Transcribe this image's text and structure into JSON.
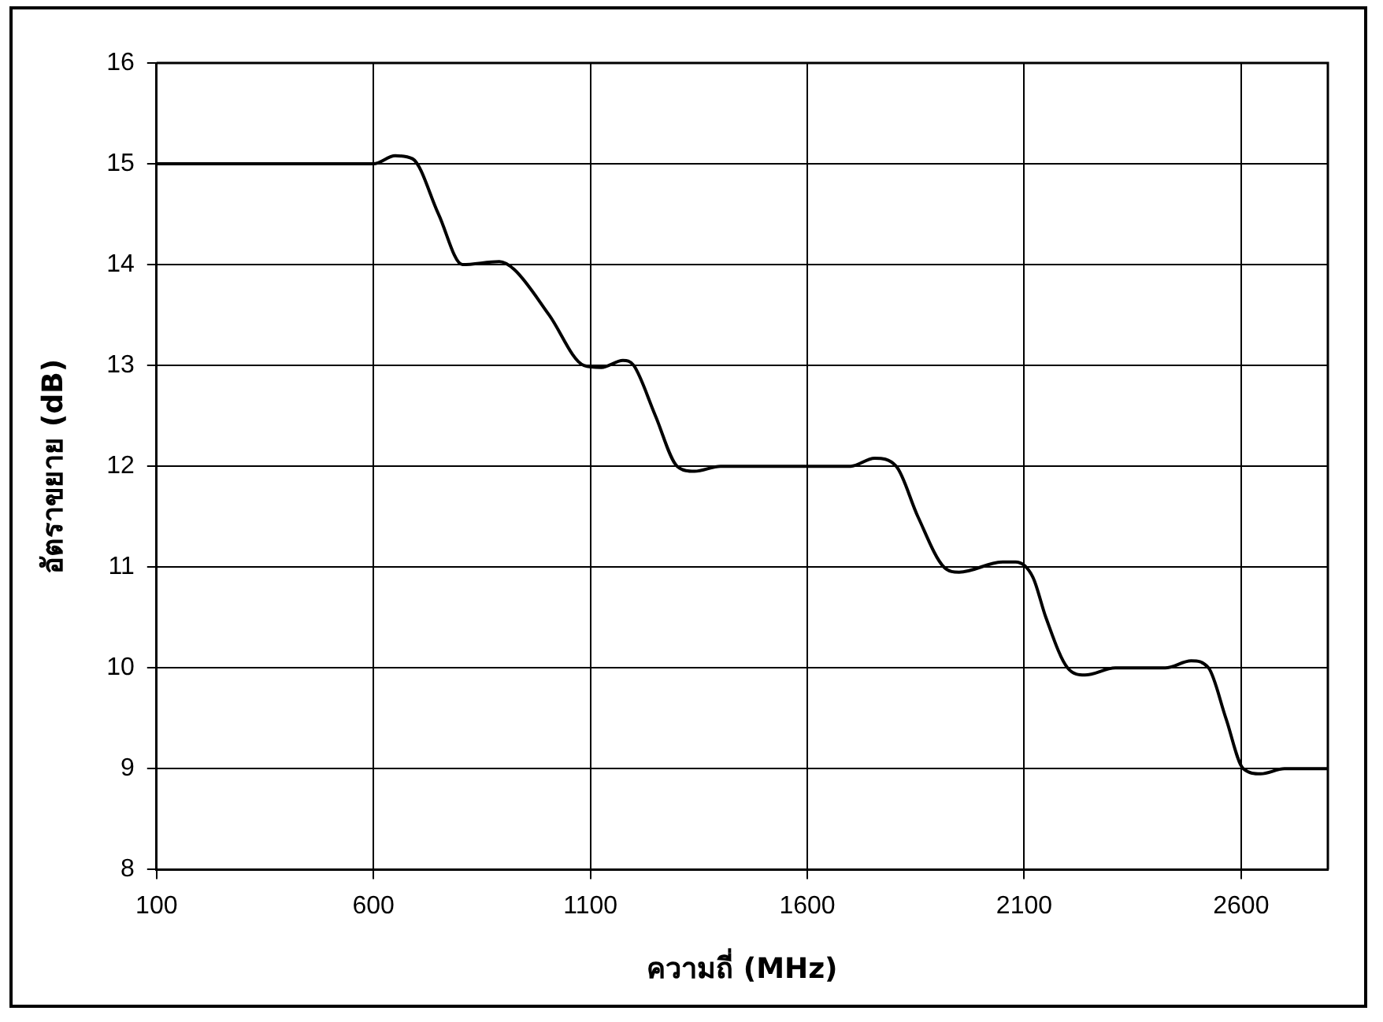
{
  "chart_data": {
    "type": "line",
    "xlabel": "ความถี่ (MHz)",
    "ylabel": "อัตราขยาย (dB)",
    "xlim": [
      100,
      2800
    ],
    "xticks": [
      100,
      600,
      1100,
      1600,
      2100,
      2600
    ],
    "ylim": [
      8,
      16
    ],
    "yticks": [
      8,
      9,
      10,
      11,
      12,
      13,
      14,
      15,
      16
    ],
    "grid": true,
    "legend": false,
    "marker": "none",
    "line_style": "solid",
    "series": [
      {
        "color": "#000000",
        "x": [
          100,
          600,
          650,
          690,
          750,
          805,
          890,
          925,
          1005,
          1085,
          1125,
          1175,
          1200,
          1250,
          1300,
          1340,
          1400,
          1700,
          1755,
          1805,
          1855,
          1915,
          1950,
          2050,
          2080,
          2120,
          2150,
          2200,
          2240,
          2310,
          2425,
          2485,
          2525,
          2565,
          2605,
          2645,
          2700,
          2800
        ],
        "values": [
          15,
          15,
          15.08,
          15.05,
          14.5,
          14,
          14.03,
          13.95,
          13.5,
          13,
          12.98,
          13.05,
          13,
          12.5,
          12,
          11.95,
          12,
          12,
          12.08,
          12,
          11.5,
          11,
          10.95,
          11.05,
          11.05,
          10.9,
          10.5,
          10,
          9.93,
          10,
          10,
          10.07,
          10,
          9.5,
          9,
          8.95,
          9,
          9
        ]
      }
    ]
  }
}
